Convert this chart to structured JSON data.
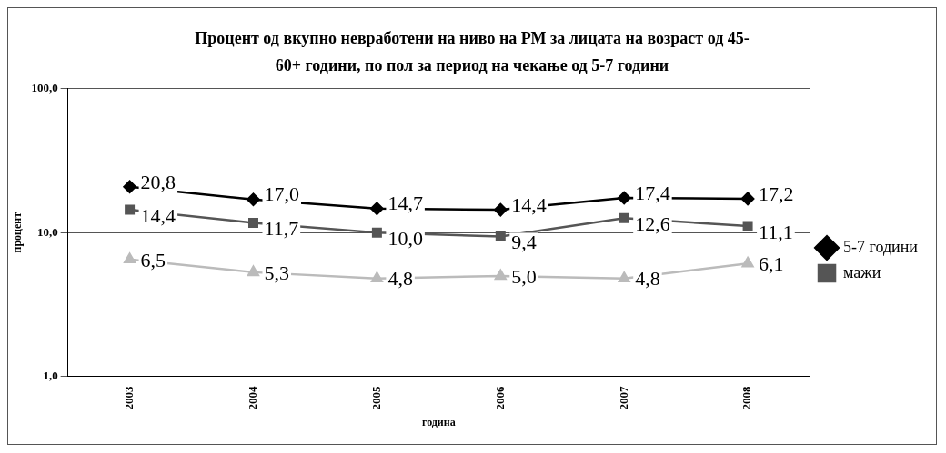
{
  "chart_data": {
    "type": "line",
    "title": "Процент од вкупно невработени на ниво на РМ за лицата на возраст од 45-60+ години, по пол за период на чекање од 5-7 години",
    "xlabel": "година",
    "ylabel": "процент",
    "categories": [
      "2003",
      "2004",
      "2005",
      "2006",
      "2007",
      "2008"
    ],
    "series": [
      {
        "name": "5-7 години",
        "color": "#000000",
        "marker": "diamond",
        "values": [
          20.8,
          17.0,
          14.7,
          14.4,
          17.4,
          17.2
        ],
        "value_labels": [
          "20,8",
          "17,0",
          "14,7",
          "14,4",
          "17,4",
          "17,2"
        ]
      },
      {
        "name": "мажи",
        "color": "#555555",
        "marker": "square",
        "values": [
          14.4,
          11.7,
          10.0,
          9.4,
          12.6,
          11.1
        ],
        "value_labels": [
          "14,4",
          "11,7",
          "10,0",
          "9,4",
          "12,6",
          "11,1"
        ]
      },
      {
        "color": "#bbbbbb",
        "marker": "triangle",
        "values": [
          6.5,
          5.3,
          4.8,
          5.0,
          4.8,
          6.1
        ],
        "value_labels": [
          "6,5",
          "5,3",
          "4,8",
          "5,0",
          "4,8",
          "6,1"
        ]
      }
    ],
    "log": "y",
    "ylim": [
      1,
      100
    ],
    "yticks": [
      {
        "value": 1,
        "label": "1,0"
      },
      {
        "value": 10,
        "label": "10,0"
      },
      {
        "value": 100,
        "label": "100,0"
      }
    ],
    "grid": "y",
    "legend": "right"
  }
}
